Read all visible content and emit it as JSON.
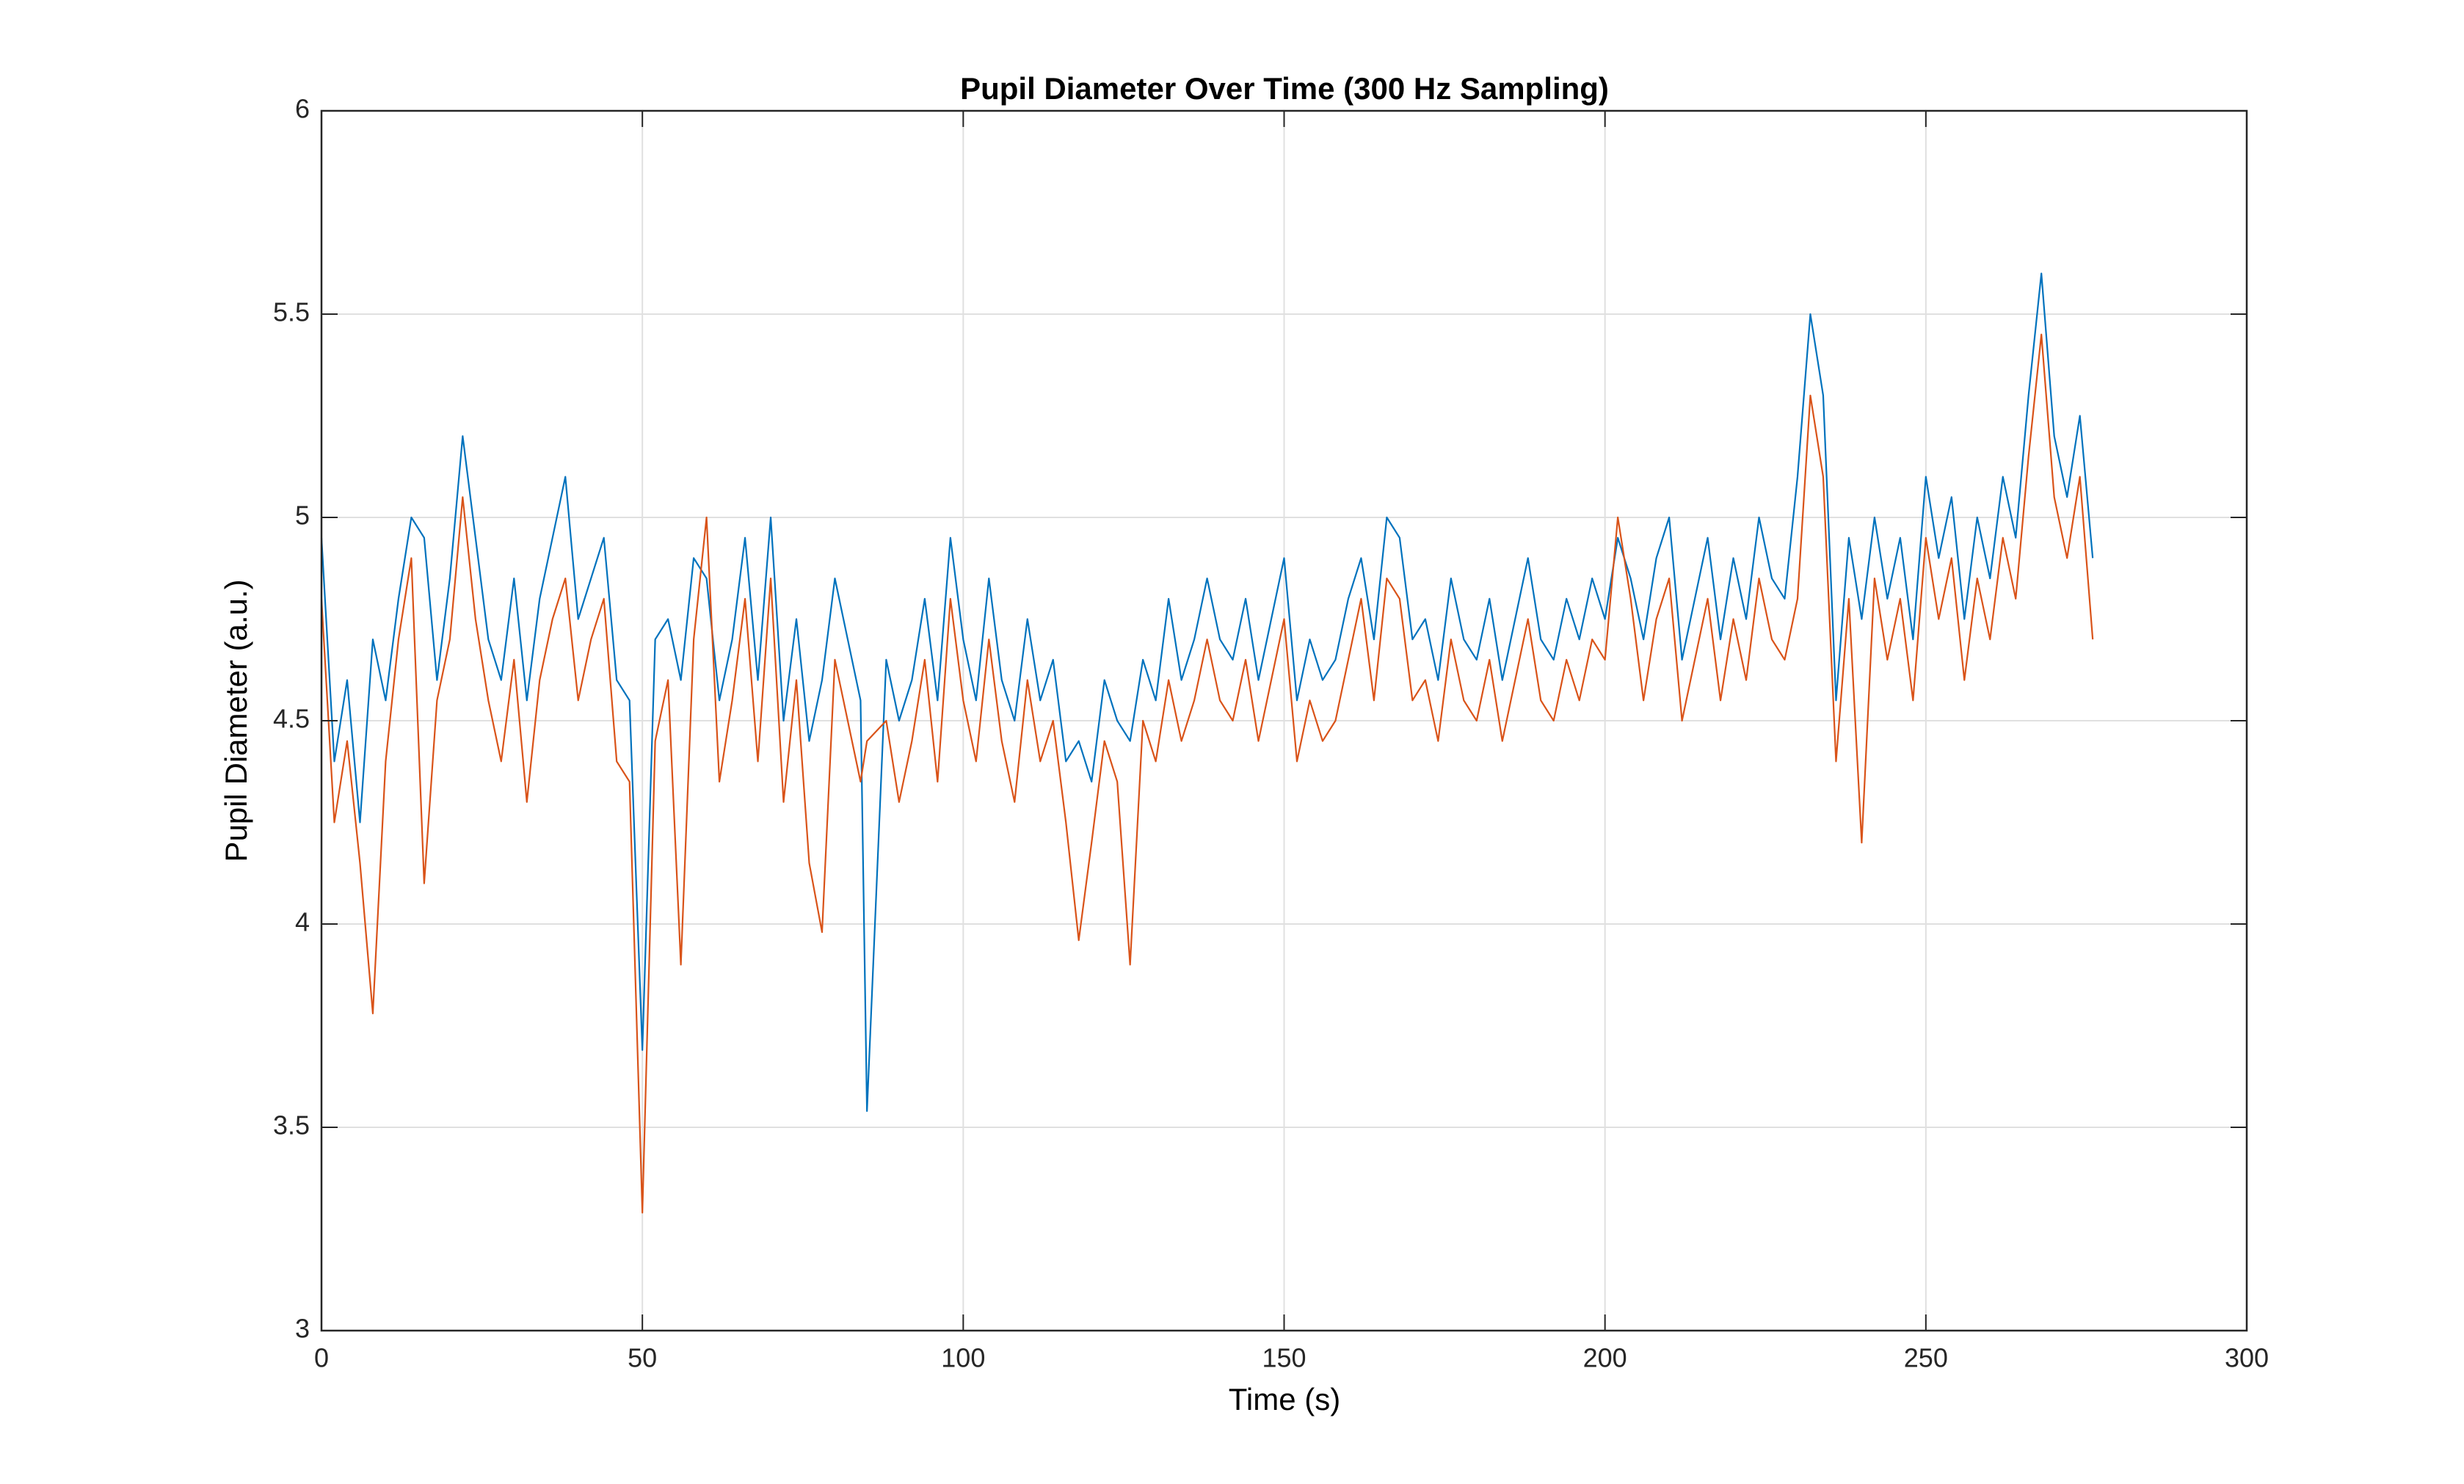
{
  "chart_data": {
    "type": "line",
    "title": "Pupil Diameter Over Time (300 Hz Sampling)",
    "x_label": "Time (s)",
    "y_label": "Pupil Diameter (a.u.)",
    "x": [
      0,
      2,
      4,
      6,
      8,
      10,
      12,
      14,
      16,
      18,
      20,
      22,
      24,
      26,
      28,
      30,
      32,
      34,
      36,
      38,
      40,
      42,
      44,
      46,
      48,
      50,
      52,
      54,
      56,
      58,
      60,
      62,
      64,
      66,
      68,
      70,
      72,
      74,
      76,
      78,
      80,
      82,
      84,
      85,
      88,
      90,
      92,
      94,
      96,
      98,
      100,
      102,
      104,
      106,
      108,
      110,
      112,
      114,
      116,
      118,
      120,
      122,
      124,
      126,
      128,
      130,
      132,
      134,
      136,
      138,
      140,
      142,
      144,
      146,
      148,
      150,
      152,
      154,
      156,
      158,
      160,
      162,
      164,
      166,
      168,
      170,
      172,
      174,
      176,
      178,
      180,
      182,
      184,
      186,
      188,
      190,
      192,
      194,
      196,
      198,
      200,
      202,
      204,
      206,
      208,
      210,
      212,
      214,
      216,
      218,
      220,
      222,
      224,
      226,
      228,
      230,
      232,
      234,
      236,
      238,
      240,
      242,
      244,
      246,
      248,
      250,
      252,
      254,
      256,
      258,
      260,
      262,
      264,
      266,
      268,
      270,
      272,
      274,
      276
    ],
    "series": [
      {
        "color": "#0072BD",
        "values": [
          4.95,
          4.4,
          4.6,
          4.25,
          4.7,
          4.55,
          4.8,
          5.0,
          4.95,
          4.6,
          4.85,
          5.2,
          4.95,
          4.7,
          4.6,
          4.85,
          4.55,
          4.8,
          4.95,
          5.1,
          4.75,
          4.85,
          4.95,
          4.6,
          4.55,
          3.69,
          4.7,
          4.75,
          4.6,
          4.9,
          4.85,
          4.55,
          4.7,
          4.95,
          4.6,
          5.0,
          4.5,
          4.75,
          4.45,
          4.6,
          4.85,
          4.7,
          4.55,
          3.54,
          4.65,
          4.5,
          4.6,
          4.8,
          4.55,
          4.95,
          4.7,
          4.55,
          4.85,
          4.6,
          4.5,
          4.75,
          4.55,
          4.65,
          4.4,
          4.45,
          4.35,
          4.6,
          4.5,
          4.45,
          4.65,
          4.55,
          4.8,
          4.6,
          4.7,
          4.85,
          4.7,
          4.65,
          4.8,
          4.6,
          4.75,
          4.9,
          4.55,
          4.7,
          4.6,
          4.65,
          4.8,
          4.9,
          4.7,
          5.0,
          4.95,
          4.7,
          4.75,
          4.6,
          4.85,
          4.7,
          4.65,
          4.8,
          4.6,
          4.75,
          4.9,
          4.7,
          4.65,
          4.8,
          4.7,
          4.85,
          4.75,
          4.95,
          4.85,
          4.7,
          4.9,
          5.0,
          4.65,
          4.8,
          4.95,
          4.7,
          4.9,
          4.75,
          5.0,
          4.85,
          4.8,
          5.1,
          5.5,
          5.3,
          4.55,
          4.95,
          4.75,
          5.0,
          4.8,
          4.95,
          4.7,
          5.1,
          4.9,
          5.05,
          4.75,
          5.0,
          4.85,
          5.1,
          4.95,
          5.3,
          5.6,
          5.2,
          5.05,
          5.25,
          4.9
        ]
      },
      {
        "color": "#D95319",
        "values": [
          4.8,
          4.25,
          4.45,
          4.15,
          3.78,
          4.4,
          4.7,
          4.9,
          4.1,
          4.55,
          4.7,
          5.05,
          4.75,
          4.55,
          4.4,
          4.65,
          4.3,
          4.6,
          4.75,
          4.85,
          4.55,
          4.7,
          4.8,
          4.4,
          4.35,
          3.29,
          4.45,
          4.6,
          3.9,
          4.7,
          5.0,
          4.35,
          4.55,
          4.8,
          4.4,
          4.85,
          4.3,
          4.6,
          4.15,
          3.98,
          4.65,
          4.5,
          4.35,
          4.45,
          4.5,
          4.3,
          4.45,
          4.65,
          4.35,
          4.8,
          4.55,
          4.4,
          4.7,
          4.45,
          4.3,
          4.6,
          4.4,
          4.5,
          4.25,
          3.96,
          4.2,
          4.45,
          4.35,
          3.9,
          4.5,
          4.4,
          4.6,
          4.45,
          4.55,
          4.7,
          4.55,
          4.5,
          4.65,
          4.45,
          4.6,
          4.75,
          4.4,
          4.55,
          4.45,
          4.5,
          4.65,
          4.8,
          4.55,
          4.85,
          4.8,
          4.55,
          4.6,
          4.45,
          4.7,
          4.55,
          4.5,
          4.65,
          4.45,
          4.6,
          4.75,
          4.55,
          4.5,
          4.65,
          4.55,
          4.7,
          4.65,
          5.0,
          4.8,
          4.55,
          4.75,
          4.85,
          4.5,
          4.65,
          4.8,
          4.55,
          4.75,
          4.6,
          4.85,
          4.7,
          4.65,
          4.8,
          5.3,
          5.1,
          4.4,
          4.8,
          4.2,
          4.85,
          4.65,
          4.8,
          4.55,
          4.95,
          4.75,
          4.9,
          4.6,
          4.85,
          4.7,
          4.95,
          4.8,
          5.15,
          5.45,
          5.05,
          4.9,
          5.1,
          4.7
        ]
      }
    ],
    "xlim": [
      0,
      300
    ],
    "xticks": [
      0,
      50,
      100,
      150,
      200,
      250,
      300
    ],
    "ylim": [
      3,
      6
    ],
    "yticks": [
      3,
      3.5,
      4,
      4.5,
      5,
      5.5,
      6
    ],
    "grid": true
  }
}
